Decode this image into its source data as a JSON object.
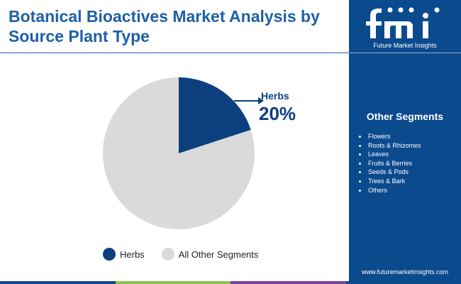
{
  "title": "Botanical Bioactives Market Analysis by Source Plant Type",
  "brand": {
    "logo_text": "fmi",
    "name": "Future Market Insights",
    "website": "www.futuremarketinsights.com"
  },
  "sidebar": {
    "heading": "Other Segments",
    "items": [
      "Flowers",
      "Roots & Rhizomes",
      "Leaves",
      "Fruits & Berries",
      "Seeds & Pods",
      "Trees & Bark",
      "Others"
    ]
  },
  "chart_data": {
    "type": "pie",
    "slices": [
      {
        "label": "Herbs",
        "value": 20,
        "color": "#0c3f7e"
      },
      {
        "label": "All Other Segments",
        "value": 80,
        "color": "#dadada"
      }
    ],
    "callout": {
      "label": "Herbs",
      "value_text": "20%"
    },
    "legend_position": "bottom"
  },
  "colors": {
    "primary": "#0c4a8e",
    "title": "#1f5fa8",
    "footer": [
      "#0c4a8e",
      "#8bc34a",
      "#7b3fa0",
      "#0c4a8e"
    ]
  }
}
